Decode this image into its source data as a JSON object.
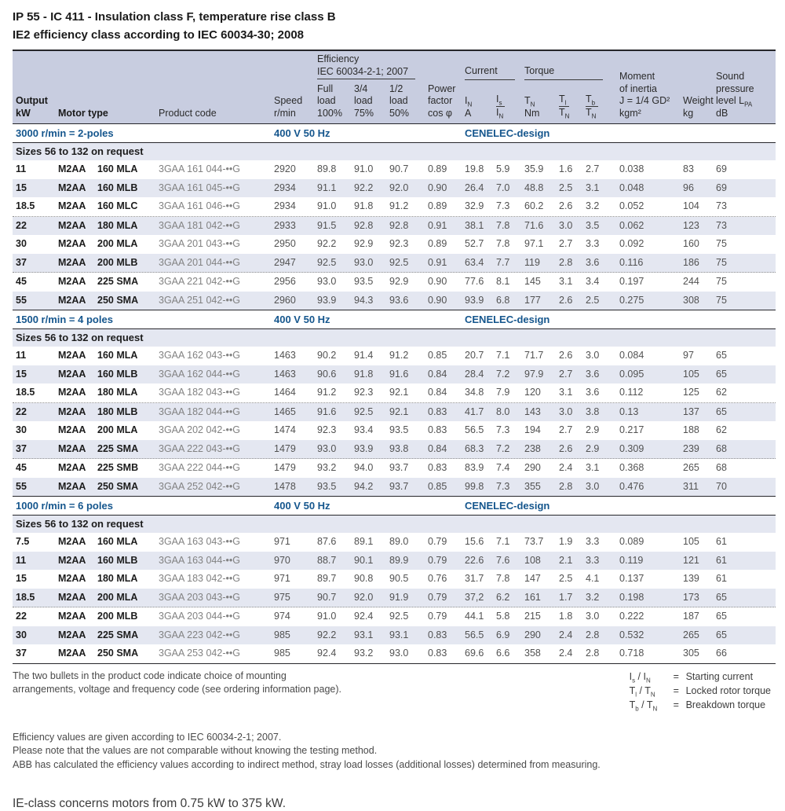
{
  "page": {
    "title_line1": "IP 55 - IC 411 - Insulation class F, temperature rise class B",
    "title_line2": "IE2 efficiency class according to IEC 60034-30; 2008"
  },
  "colors": {
    "header_band": "#c8cde0",
    "row_stripe": "#e4e7f1",
    "accent_blue": "#15568d"
  },
  "table": {
    "header": {
      "groups": {
        "efficiency_l1": "Efficiency",
        "efficiency_l2": "IEC 60034-2-1; 2007",
        "current": "Current",
        "torque": "Torque"
      },
      "columns": {
        "output_l1": "Output",
        "output_l2": "kW",
        "motor_type": "Motor type",
        "product_code": "Product code",
        "speed_l1": "Speed",
        "speed_l2": "r/min",
        "full_l1": "Full",
        "full_l2": "load",
        "full_l3": "100%",
        "tq_l1": "3/4",
        "tq_l2": "load",
        "tq_l3": "75%",
        "half_l1": "1/2",
        "half_l2": "load",
        "half_l3": "50%",
        "pf_l1": "Power",
        "pf_l2": "factor",
        "pf_l3": "cos φ",
        "in_sym": "I",
        "in_sub": "N",
        "in_unit": "A",
        "isin_top_sym": "I",
        "isin_top_sub": "s",
        "isin_bot_sym": "I",
        "isin_bot_sub": "N",
        "tn_sym": "T",
        "tn_sub": "N",
        "tn_unit": "Nm",
        "tltn_top_sym": "T",
        "tltn_top_sub": "l",
        "tltn_bot_sym": "T",
        "tltn_bot_sub": "N",
        "tbtn_top_sym": "T",
        "tbtn_top_sub": "b",
        "tbtn_bot_sym": "T",
        "tbtn_bot_sub": "N",
        "inertia_l1": "Moment",
        "inertia_l2": "of inertia",
        "inertia_l3": "J = 1/4 GD²",
        "inertia_l4": "kgm²",
        "weight_l1": "Weight",
        "weight_l2": "kg",
        "sound_l1": "Sound",
        "sound_l2": "pressure",
        "sound_l3_main": "level L",
        "sound_l3_sub": "PA",
        "sound_l4": "dB"
      }
    },
    "sections": [
      {
        "speed_label": "3000 r/min = 2-poles",
        "voltage_label": "400 V 50 Hz",
        "design_label": "CENELEC-design",
        "note": "Sizes 56 to 132 on request",
        "dotted_after": [
          2,
          5
        ],
        "rows": [
          [
            "11",
            "M2AA",
            "160 MLA",
            "3GAA 161 044-••G",
            "2920",
            "89.8",
            "91.0",
            "90.7",
            "0.89",
            "19.8",
            "5.9",
            "35.9",
            "1.6",
            "2.7",
            "0.038",
            "83",
            "69"
          ],
          [
            "15",
            "M2AA",
            "160 MLB",
            "3GAA 161 045-••G",
            "2934",
            "91.1",
            "92.2",
            "92.0",
            "0.90",
            "26.4",
            "7.0",
            "48.8",
            "2.5",
            "3.1",
            "0.048",
            "96",
            "69"
          ],
          [
            "18.5",
            "M2AA",
            "160 MLC",
            "3GAA 161 046-••G",
            "2934",
            "91.0",
            "91.8",
            "91.2",
            "0.89",
            "32.9",
            "7.3",
            "60.2",
            "2.6",
            "3.2",
            "0.052",
            "104",
            "73"
          ],
          [
            "22",
            "M2AA",
            "180 MLA",
            "3GAA 181 042-••G",
            "2933",
            "91.5",
            "92.8",
            "92.8",
            "0.91",
            "38.1",
            "7.8",
            "71.6",
            "3.0",
            "3.5",
            "0.062",
            "123",
            "73"
          ],
          [
            "30",
            "M2AA",
            "200 MLA",
            "3GAA 201 043-••G",
            "2950",
            "92.2",
            "92.9",
            "92.3",
            "0.89",
            "52.7",
            "7.8",
            "97.1",
            "2.7",
            "3.3",
            "0.092",
            "160",
            "75"
          ],
          [
            "37",
            "M2AA",
            "200 MLB",
            "3GAA 201 044-••G",
            "2947",
            "92.5",
            "93.0",
            "92.5",
            "0.91",
            "63.4",
            "7.7",
            "119",
            "2.8",
            "3.6",
            "0.116",
            "186",
            "75"
          ],
          [
            "45",
            "M2AA",
            "225 SMA",
            "3GAA 221 042-••G",
            "2956",
            "93.0",
            "93.5",
            "92.9",
            "0.90",
            "77.6",
            "8.1",
            "145",
            "3.1",
            "3.4",
            "0.197",
            "244",
            "75"
          ],
          [
            "55",
            "M2AA",
            "250 SMA",
            "3GAA 251 042-••G",
            "2960",
            "93.9",
            "94.3",
            "93.6",
            "0.90",
            "93.9",
            "6.8",
            "177",
            "2.6",
            "2.5",
            "0.275",
            "308",
            "75"
          ]
        ]
      },
      {
        "speed_label": "1500 r/min = 4 poles",
        "voltage_label": "400 V 50 Hz",
        "design_label": "CENELEC-design",
        "note": "Sizes 56 to 132 on request",
        "dotted_after": [
          2,
          5
        ],
        "rows": [
          [
            "11",
            "M2AA",
            "160 MLA",
            "3GAA 162 043-••G",
            "1463",
            "90.2",
            "91.4",
            "91.2",
            "0.85",
            "20.7",
            "7.1",
            "71.7",
            "2.6",
            "3.0",
            "0.084",
            "97",
            "65"
          ],
          [
            "15",
            "M2AA",
            "160 MLB",
            "3GAA 162 044-••G",
            "1463",
            "90.6",
            "91.8",
            "91.6",
            "0.84",
            "28.4",
            "7.2",
            "97.9",
            "2.7",
            "3.6",
            "0.095",
            "105",
            "65"
          ],
          [
            "18.5",
            "M2AA",
            "180 MLA",
            "3GAA 182 043-••G",
            "1464",
            "91.2",
            "92.3",
            "92.1",
            "0.84",
            "34.8",
            "7.9",
            "120",
            "3.1",
            "3.6",
            "0.112",
            "125",
            "62"
          ],
          [
            "22",
            "M2AA",
            "180 MLB",
            "3GAA 182 044-••G",
            "1465",
            "91.6",
            "92.5",
            "92.1",
            "0.83",
            "41.7",
            "8.0",
            "143",
            "3.0",
            "3.8",
            "0.13",
            "137",
            "65"
          ],
          [
            "30",
            "M2AA",
            "200 MLA",
            "3GAA 202 042-••G",
            "1474",
            "92.3",
            "93.4",
            "93.5",
            "0.83",
            "56.5",
            "7.3",
            "194",
            "2.7",
            "2.9",
            "0.217",
            "188",
            "62"
          ],
          [
            "37",
            "M2AA",
            "225 SMA",
            "3GAA 222 043-••G",
            "1479",
            "93.0",
            "93.9",
            "93.8",
            "0.84",
            "68.3",
            "7.2",
            "238",
            "2.6",
            "2.9",
            "0.309",
            "239",
            "68"
          ],
          [
            "45",
            "M2AA",
            "225 SMB",
            "3GAA 222 044-••G",
            "1479",
            "93.2",
            "94.0",
            "93.7",
            "0.83",
            "83.9",
            "7.4",
            "290",
            "2.4",
            "3.1",
            "0.368",
            "265",
            "68"
          ],
          [
            "55",
            "M2AA",
            "250 SMA",
            "3GAA 252 042-••G",
            "1478",
            "93.5",
            "94.2",
            "93.7",
            "0.85",
            "99.8",
            "7.3",
            "355",
            "2.8",
            "3.0",
            "0.476",
            "311",
            "70"
          ]
        ]
      },
      {
        "speed_label": "1000 r/min = 6 poles",
        "voltage_label": "400 V 50 Hz",
        "design_label": "CENELEC-design",
        "note": "Sizes 56 to 132 on request",
        "dotted_after": [
          3
        ],
        "rows": [
          [
            "7.5",
            "M2AA",
            "160 MLA",
            "3GAA 163 043-••G",
            "971",
            "87.6",
            "89.1",
            "89.0",
            "0.79",
            "15.6",
            "7.1",
            "73.7",
            "1.9",
            "3.3",
            "0.089",
            "105",
            "61"
          ],
          [
            "11",
            "M2AA",
            "160 MLB",
            "3GAA 163 044-••G",
            "970",
            "88.7",
            "90.1",
            "89.9",
            "0.79",
            "22.6",
            "7.6",
            "108",
            "2.1",
            "3.3",
            "0.119",
            "121",
            "61"
          ],
          [
            "15",
            "M2AA",
            "180 MLA",
            "3GAA 183 042-••G",
            "971",
            "89.7",
            "90.8",
            "90.5",
            "0.76",
            "31.7",
            "7.8",
            "147",
            "2.5",
            "4.1",
            "0.137",
            "139",
            "61"
          ],
          [
            "18.5",
            "M2AA",
            "200 MLA",
            "3GAA 203 043-••G",
            "975",
            "90.7",
            "92.0",
            "91.9",
            "0.79",
            "37,2",
            "6.2",
            "161",
            "1.7",
            "3.2",
            "0.198",
            "173",
            "65"
          ],
          [
            "22",
            "M2AA",
            "200 MLB",
            "3GAA 203 044-••G",
            "974",
            "91.0",
            "92.4",
            "92.5",
            "0.79",
            "44.1",
            "5.8",
            "215",
            "1.8",
            "3.0",
            "0.222",
            "187",
            "65"
          ],
          [
            "30",
            "M2AA",
            "225 SMA",
            "3GAA 223 042-••G",
            "985",
            "92.2",
            "93.1",
            "93.1",
            "0.83",
            "56.5",
            "6.9",
            "290",
            "2.4",
            "2.8",
            "0.532",
            "265",
            "65"
          ],
          [
            "37",
            "M2AA",
            "250 SMA",
            "3GAA 253 042-••G",
            "985",
            "92.4",
            "93.2",
            "93.0",
            "0.83",
            "69.6",
            "6.6",
            "358",
            "2.4",
            "2.8",
            "0.718",
            "305",
            "66"
          ]
        ]
      }
    ]
  },
  "footnotes": {
    "bullets_note_l1": "The two bullets in the product code indicate choice of mounting",
    "bullets_note_l2": "arrangements, voltage and frequency code (see ordering information page).",
    "efficiency_note_l1": "Efficiency values are given according to IEC 60034-2-1; 2007.",
    "efficiency_note_l2": "Please note that the values are not comparable without knowing the testing method.",
    "efficiency_note_l3": "ABB has calculated the efficiency values according to indirect method, stray load losses (additional losses) determined from measuring.",
    "ie_class_note": "IE-class concerns motors from 0.75 kW to 375 kW."
  },
  "legend": [
    {
      "num_sym": "I",
      "num_sub": "s",
      "slash": "/",
      "den_sym": "I",
      "den_sub": "N",
      "equals": "=",
      "label": "Starting current"
    },
    {
      "num_sym": "T",
      "num_sub": "l",
      "slash": "/",
      "den_sym": "T",
      "den_sub": "N",
      "equals": "=",
      "label": "Locked rotor torque"
    },
    {
      "num_sym": "T",
      "num_sub": "b",
      "slash": "/",
      "den_sym": "T",
      "den_sub": "N",
      "equals": "=",
      "label": "Breakdown torque"
    }
  ]
}
